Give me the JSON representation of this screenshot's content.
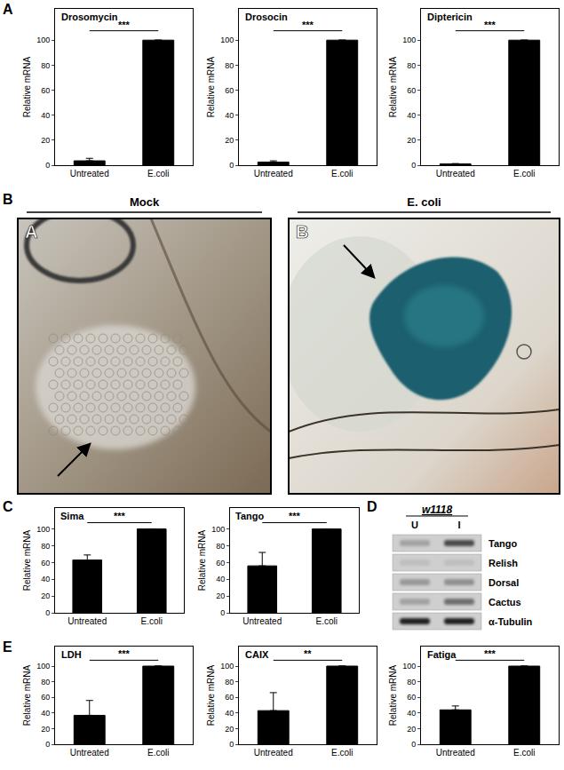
{
  "figure": {
    "panel_labels": [
      "A",
      "B",
      "C",
      "D",
      "E"
    ],
    "images": {
      "panel": "B",
      "items": [
        {
          "header": "Mock",
          "label": "A"
        },
        {
          "header": "E. coli",
          "label": "B"
        }
      ]
    },
    "blot": {
      "panel": "D",
      "strain": "w1118",
      "lanes": [
        "U",
        "I"
      ],
      "rows": [
        {
          "name": "Tango",
          "bands": [
            0.35,
            0.75
          ]
        },
        {
          "name": "Relish",
          "bands": [
            0.15,
            0.15
          ]
        },
        {
          "name": "Dorsal",
          "bands": [
            0.4,
            0.45
          ]
        },
        {
          "name": "Cactus",
          "bands": [
            0.35,
            0.6
          ]
        },
        {
          "name": "α-Tubulin",
          "bands": [
            0.9,
            0.9
          ]
        }
      ]
    }
  },
  "chart_data": [
    {
      "panel": "A",
      "type": "bar",
      "title": "Drosomycin",
      "y_label": "Relative mRNA",
      "categories": [
        "Untreated",
        "E.coli"
      ],
      "values": [
        3.5,
        100
      ],
      "errors": [
        2,
        0
      ],
      "color": "#000000",
      "ylim": [
        0,
        125
      ],
      "yticks": [
        0,
        20,
        40,
        60,
        80,
        100
      ],
      "grid": false,
      "annotations": [
        "***"
      ]
    },
    {
      "panel": "A",
      "type": "bar",
      "title": "Drosocin",
      "y_label": "Relative mRNA",
      "categories": [
        "Untreated",
        "E.coli"
      ],
      "values": [
        2.5,
        100
      ],
      "errors": [
        1,
        0
      ],
      "color": "#000000",
      "ylim": [
        0,
        125
      ],
      "yticks": [
        0,
        20,
        40,
        60,
        80,
        100
      ],
      "grid": false,
      "annotations": [
        "***"
      ]
    },
    {
      "panel": "A",
      "type": "bar",
      "title": "Diptericin",
      "y_label": "Relative mRNA",
      "categories": [
        "Untreated",
        "E.coli"
      ],
      "values": [
        1,
        100
      ],
      "errors": [
        0.3,
        0
      ],
      "color": "#000000",
      "ylim": [
        0,
        125
      ],
      "yticks": [
        0,
        20,
        40,
        60,
        80,
        100
      ],
      "grid": false,
      "annotations": [
        "***"
      ]
    },
    {
      "panel": "C",
      "type": "bar",
      "title": "Sima",
      "y_label": "Relative mRNA",
      "categories": [
        "Untreated",
        "E.coli"
      ],
      "values": [
        63,
        100
      ],
      "errors": [
        6,
        0
      ],
      "color": "#000000",
      "ylim": [
        0,
        125
      ],
      "yticks": [
        0,
        20,
        40,
        60,
        80,
        100
      ],
      "grid": false,
      "annotations": [
        "***"
      ]
    },
    {
      "panel": "C",
      "type": "bar",
      "title": "Tango",
      "y_label": "Relative mRNA",
      "categories": [
        "Untreated",
        "E.coli"
      ],
      "values": [
        56,
        100
      ],
      "errors": [
        16,
        0
      ],
      "color": "#000000",
      "ylim": [
        0,
        125
      ],
      "yticks": [
        0,
        20,
        40,
        60,
        80,
        100
      ],
      "grid": false,
      "annotations": [
        "***"
      ]
    },
    {
      "panel": "E",
      "type": "bar",
      "title": "LDH",
      "y_label": "Relative mRNA",
      "categories": [
        "Untreated",
        "E.coli"
      ],
      "values": [
        37,
        100
      ],
      "errors": [
        19,
        0
      ],
      "color": "#000000",
      "ylim": [
        0,
        125
      ],
      "yticks": [
        0,
        20,
        40,
        60,
        80,
        100
      ],
      "grid": false,
      "annotations": [
        "***"
      ]
    },
    {
      "panel": "E",
      "type": "bar",
      "title": "CAIX",
      "y_label": "Relative mRNA",
      "categories": [
        "Untreated",
        "E.coli"
      ],
      "values": [
        43,
        100
      ],
      "errors": [
        23,
        0
      ],
      "color": "#000000",
      "ylim": [
        0,
        125
      ],
      "yticks": [
        0,
        20,
        40,
        60,
        80,
        100
      ],
      "grid": false,
      "annotations": [
        "**"
      ]
    },
    {
      "panel": "E",
      "type": "bar",
      "title": "Fatiga",
      "y_label": "Relative mRNA",
      "categories": [
        "Untreated",
        "E.coli"
      ],
      "values": [
        44,
        100
      ],
      "errors": [
        5,
        0
      ],
      "color": "#000000",
      "ylim": [
        0,
        125
      ],
      "yticks": [
        0,
        20,
        40,
        60,
        80,
        100
      ],
      "grid": false,
      "annotations": [
        "***"
      ]
    }
  ]
}
